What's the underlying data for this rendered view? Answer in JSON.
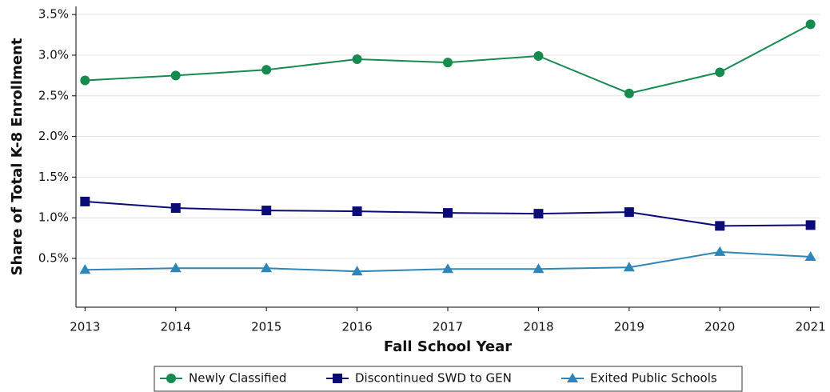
{
  "chart_data": {
    "type": "line",
    "x_label": "Fall School Year",
    "y_label": "Share of Total K-8 Enrollment",
    "x": [
      2013,
      2014,
      2015,
      2016,
      2017,
      2018,
      2019,
      2020,
      2021
    ],
    "series": [
      {
        "name": "Newly Classified",
        "color": "#178a4f",
        "marker": "circle",
        "values": [
          2.69,
          2.75,
          2.82,
          2.95,
          2.91,
          2.99,
          2.53,
          2.79,
          3.38
        ]
      },
      {
        "name": "Discontinued SWD to GEN",
        "color": "#0b0b78",
        "marker": "square",
        "values": [
          1.2,
          1.12,
          1.09,
          1.08,
          1.06,
          1.05,
          1.07,
          0.9,
          0.91
        ]
      },
      {
        "name": "Exited Public Schools",
        "color": "#2e86b8",
        "marker": "triangle",
        "values": [
          0.36,
          0.38,
          0.38,
          0.34,
          0.37,
          0.37,
          0.39,
          0.58,
          0.52
        ]
      }
    ],
    "xlim": [
      2012.9,
      2021.1
    ],
    "xticks": [
      2013,
      2014,
      2015,
      2016,
      2017,
      2018,
      2019,
      2020,
      2021
    ],
    "ylim": [
      -0.1,
      3.6
    ],
    "yticks": [
      {
        "value": 0.5,
        "label": "0.5%"
      },
      {
        "value": 1.0,
        "label": "1.0%"
      },
      {
        "value": 1.5,
        "label": "1.5%"
      },
      {
        "value": 2.0,
        "label": "2.0%"
      },
      {
        "value": 2.5,
        "label": "2.5%"
      },
      {
        "value": 3.0,
        "label": "3.0%"
      },
      {
        "value": 3.5,
        "label": "3.5%"
      }
    ],
    "grid": true,
    "legend": "bottom"
  }
}
